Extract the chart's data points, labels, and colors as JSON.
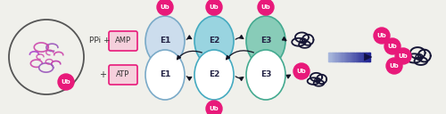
{
  "bg_color": "#f0f0eb",
  "ub_color": "#e8197a",
  "ub_text_color": "white",
  "e1_color": "#ccdded",
  "e2_color": "#99d4e0",
  "e3_color": "#88ccb8",
  "e1_border": "#7aaac8",
  "e2_border": "#44aac0",
  "e3_border": "#44aa90",
  "amp_atp_fc": "#f5d0dc",
  "amp_atp_ec": "#e8197a",
  "arrow_color": "#111122",
  "protein_ec": "#555555",
  "dark_protein_color": "#151535",
  "ppi_text": "PPi +",
  "amp_text": "AMP",
  "atp_text": "ATP",
  "plus_text": "+ ",
  "e1_text": "E1",
  "e2_text": "E2",
  "e3_text": "E3",
  "ub_text": "Ub",
  "blue_arrow_start": "#aabbdd",
  "blue_arrow_end": "#111144"
}
